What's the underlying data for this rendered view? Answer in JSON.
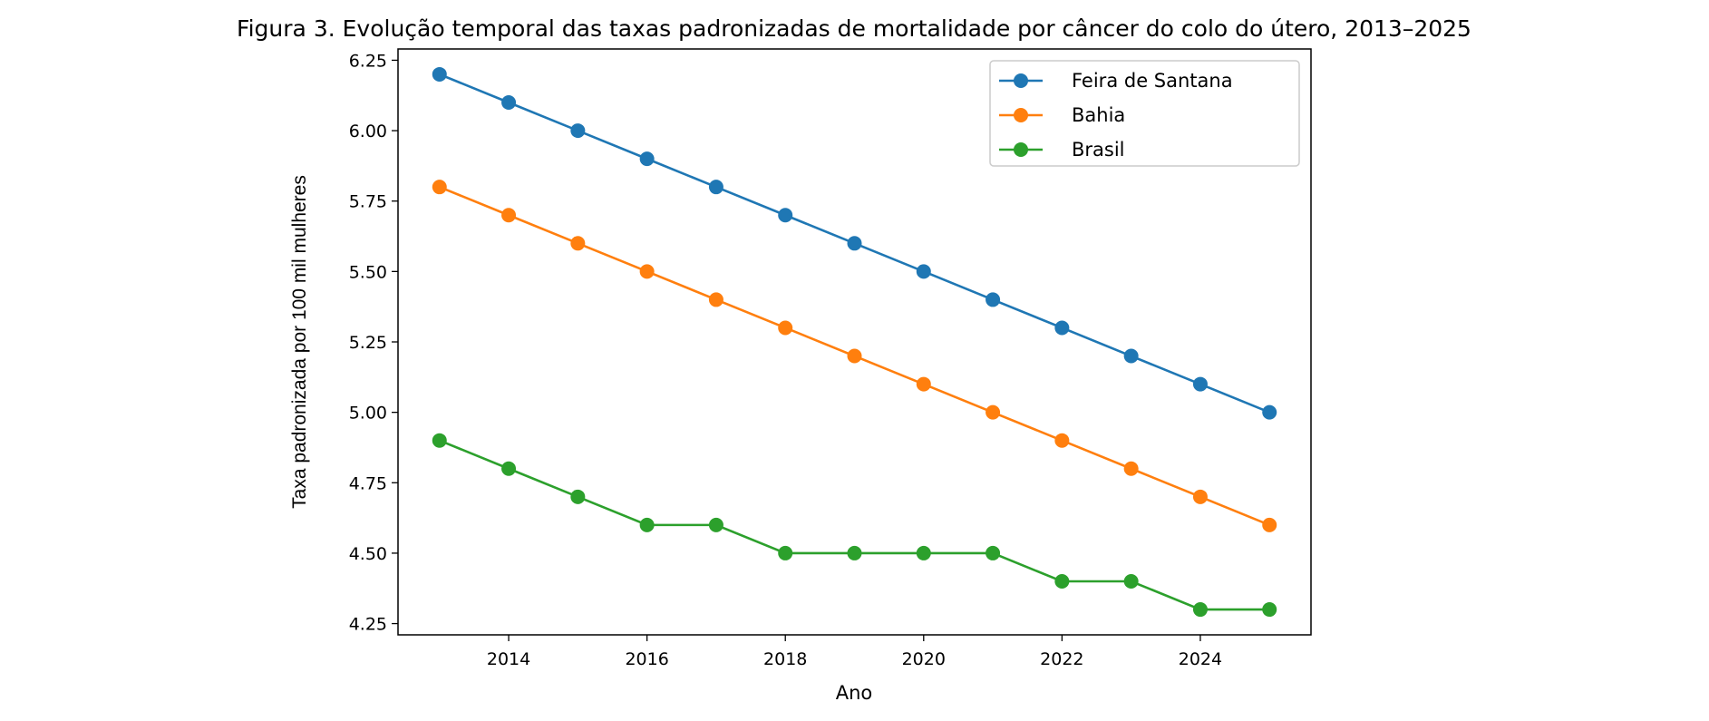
{
  "chart_data": {
    "type": "line",
    "title": "Figura 3. Evolução temporal das taxas padronizadas de mortalidade por câncer do colo do útero, 2013–2025",
    "xlabel": "Ano",
    "ylabel": "Taxa padronizada por 100 mil mulheres",
    "x": [
      2013,
      2014,
      2015,
      2016,
      2017,
      2018,
      2019,
      2020,
      2021,
      2022,
      2023,
      2024,
      2025
    ],
    "xlim": [
      2012.4,
      2025.6
    ],
    "ylim": [
      4.21,
      6.29
    ],
    "xticks": [
      "2014",
      "2016",
      "2018",
      "2020",
      "2022",
      "2024"
    ],
    "yticks": [
      "4.25",
      "4.50",
      "4.75",
      "5.00",
      "5.25",
      "5.50",
      "5.75",
      "6.00",
      "6.25"
    ],
    "grid": false,
    "legend_position": "top-right",
    "series": [
      {
        "name": "Feira de Santana",
        "color": "#1f77b4",
        "values": [
          6.2,
          6.1,
          6.0,
          5.9,
          5.8,
          5.7,
          5.6,
          5.5,
          5.4,
          5.3,
          5.2,
          5.1,
          5.0
        ]
      },
      {
        "name": "Bahia",
        "color": "#ff7f0e",
        "values": [
          5.8,
          5.7,
          5.6,
          5.5,
          5.4,
          5.3,
          5.2,
          5.1,
          5.0,
          4.9,
          4.8,
          4.7,
          4.6
        ]
      },
      {
        "name": "Brasil",
        "color": "#2ca02c",
        "values": [
          4.9,
          4.8,
          4.7,
          4.6,
          4.6,
          4.5,
          4.5,
          4.5,
          4.5,
          4.4,
          4.4,
          4.3,
          4.3
        ]
      }
    ]
  }
}
